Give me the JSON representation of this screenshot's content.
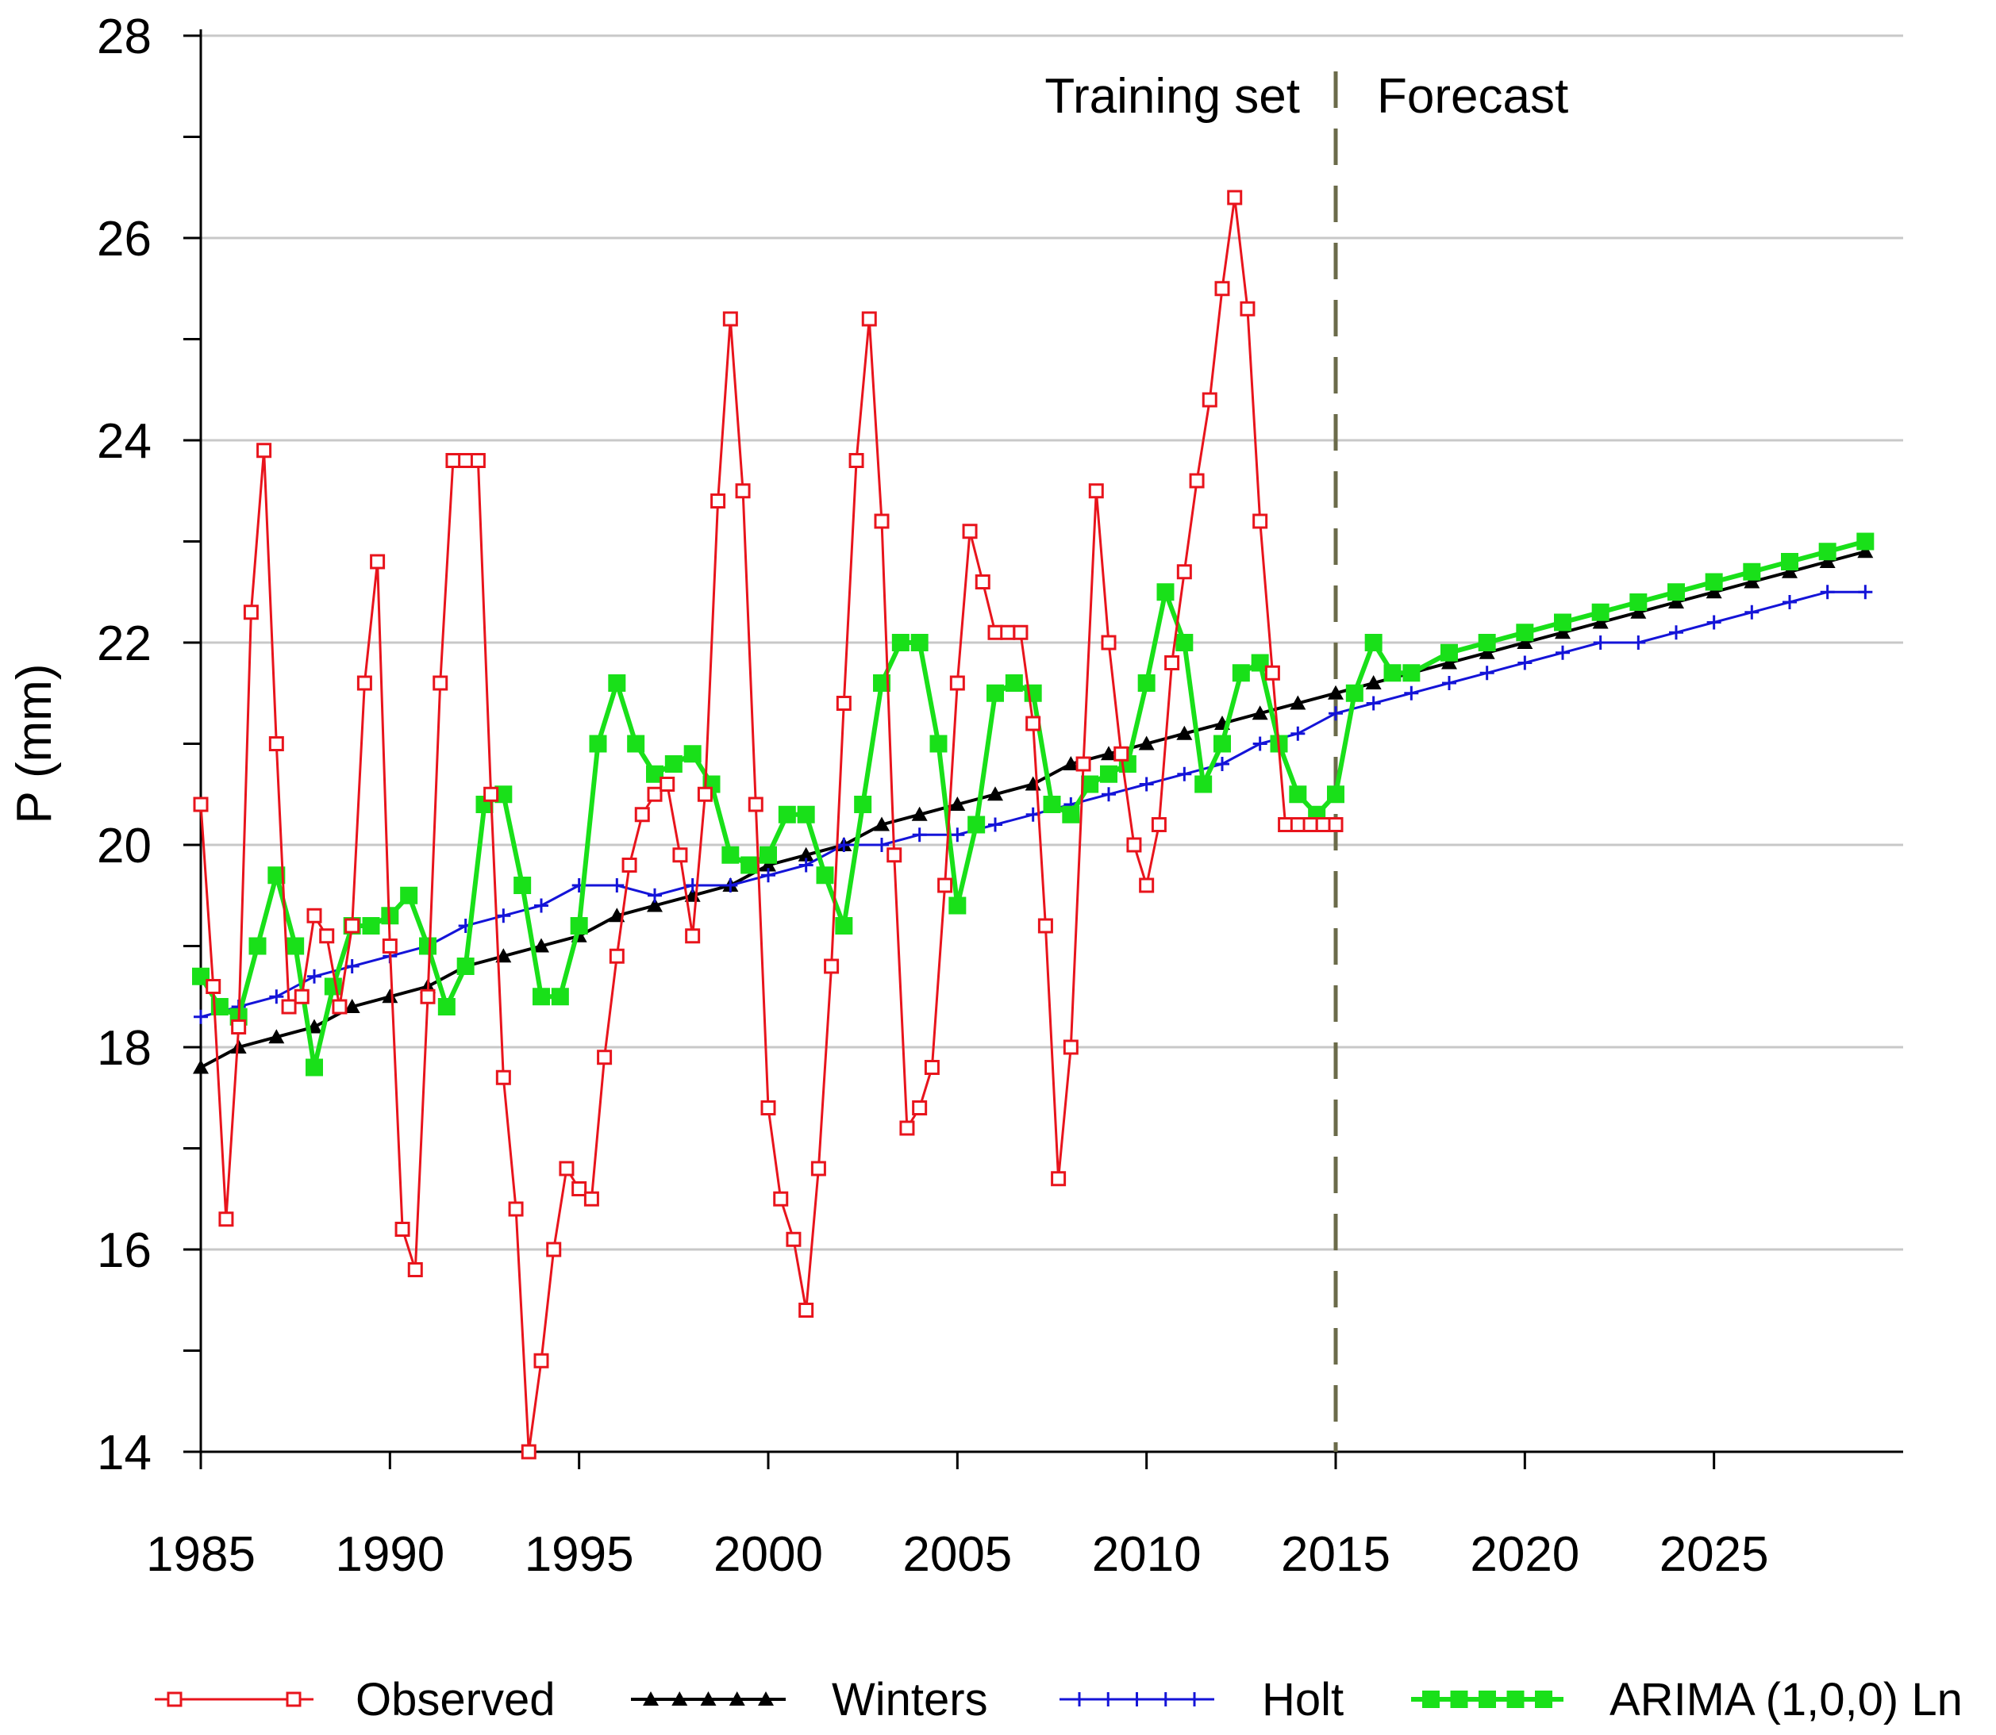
{
  "chart_data": {
    "type": "line",
    "title": "",
    "xlabel": "",
    "ylabel": "P (mm)",
    "xlim": [
      1985,
      2030
    ],
    "ylim": [
      14,
      28
    ],
    "x_ticks": [
      1985,
      1990,
      1995,
      2000,
      2005,
      2010,
      2015,
      2020,
      2025
    ],
    "y_ticks": [
      14,
      16,
      18,
      20,
      22,
      24,
      26,
      28
    ],
    "grid": "horizontal",
    "legend_position": "bottom",
    "annotations": {
      "divider_x": 2015,
      "training_label": "Training set",
      "forecast_label": "Forecast"
    },
    "colors": {
      "observed": "#e8141c",
      "winters": "#000000",
      "holt": "#1414d8",
      "arima": "#19e019",
      "divider": "#6b6b4a",
      "grid": "#c8c8c8"
    },
    "series": [
      {
        "name": "Observed",
        "x": [
          1985.0,
          1985.33,
          1985.67,
          1986.0,
          1986.33,
          1986.67,
          1987.0,
          1987.33,
          1987.67,
          1988.0,
          1988.33,
          1988.67,
          1989.0,
          1989.33,
          1989.67,
          1990.0,
          1990.33,
          1990.67,
          1991.0,
          1991.33,
          1991.67,
          1992.0,
          1992.33,
          1992.67,
          1993.0,
          1993.33,
          1993.67,
          1994.0,
          1994.33,
          1994.67,
          1995.0,
          1995.33,
          1995.67,
          1996.0,
          1996.33,
          1996.67,
          1997.0,
          1997.33,
          1997.67,
          1998.0,
          1998.33,
          1998.67,
          1999.0,
          1999.33,
          1999.67,
          2000.0,
          2000.33,
          2000.67,
          2001.0,
          2001.33,
          2001.67,
          2002.0,
          2002.33,
          2002.67,
          2003.0,
          2003.33,
          2003.67,
          2004.0,
          2004.33,
          2004.67,
          2005.0,
          2005.33,
          2005.67,
          2006.0,
          2006.33,
          2006.67,
          2007.0,
          2007.33,
          2007.67,
          2008.0,
          2008.33,
          2008.67,
          2009.0,
          2009.33,
          2009.67,
          2010.0,
          2010.33,
          2010.67,
          2011.0,
          2011.33,
          2011.67,
          2012.0,
          2012.33,
          2012.67,
          2013.0,
          2013.33,
          2013.67,
          2014.0,
          2014.33,
          2014.67,
          2015.0
        ],
        "values": [
          20.4,
          18.6,
          16.3,
          18.2,
          22.3,
          23.9,
          21.0,
          18.4,
          18.5,
          19.3,
          19.1,
          18.4,
          19.2,
          21.6,
          22.8,
          19.0,
          16.2,
          15.8,
          18.5,
          21.6,
          23.8,
          23.8,
          23.8,
          20.5,
          17.7,
          16.4,
          14.0,
          14.9,
          16.0,
          16.8,
          16.6,
          16.5,
          17.9,
          18.9,
          19.8,
          20.3,
          20.5,
          20.6,
          19.9,
          19.1,
          20.5,
          23.4,
          25.2,
          23.5,
          20.4,
          17.4,
          16.5,
          16.1,
          15.4,
          16.8,
          18.8,
          21.4,
          23.8,
          25.2,
          23.2,
          19.9,
          17.2,
          17.4,
          17.8,
          19.6,
          21.6,
          23.1,
          22.6,
          22.1,
          22.1,
          22.1,
          21.2,
          19.2,
          16.7,
          18.0,
          20.8,
          23.5,
          22.0,
          20.9,
          20.0,
          19.6,
          20.2,
          21.8,
          22.7,
          23.6,
          24.4,
          25.5,
          26.4,
          25.3,
          23.2,
          21.7,
          20.2,
          20.2,
          20.2,
          20.2,
          20.2
        ],
        "marker": "open-square"
      },
      {
        "name": "Winters",
        "x": [
          1985,
          1986,
          1987,
          1988,
          1989,
          1990,
          1991,
          1992,
          1993,
          1994,
          1995,
          1996,
          1997,
          1998,
          1999,
          2000,
          2001,
          2002,
          2003,
          2004,
          2005,
          2006,
          2007,
          2008,
          2009,
          2010,
          2011,
          2012,
          2013,
          2014,
          2015,
          2016,
          2017,
          2018,
          2019,
          2020,
          2021,
          2022,
          2023,
          2024,
          2025,
          2026,
          2027,
          2028,
          2029
        ],
        "values": [
          17.8,
          18.0,
          18.1,
          18.2,
          18.4,
          18.5,
          18.6,
          18.8,
          18.9,
          19.0,
          19.1,
          19.3,
          19.4,
          19.5,
          19.6,
          19.8,
          19.9,
          20.0,
          20.2,
          20.3,
          20.4,
          20.5,
          20.6,
          20.8,
          20.9,
          21.0,
          21.1,
          21.2,
          21.3,
          21.4,
          21.5,
          21.6,
          21.7,
          21.8,
          21.9,
          22.0,
          22.1,
          22.2,
          22.3,
          22.4,
          22.5,
          22.6,
          22.7,
          22.8,
          22.9
        ],
        "marker": "filled-triangle"
      },
      {
        "name": "Holt",
        "x": [
          1985,
          1986,
          1987,
          1988,
          1989,
          1990,
          1991,
          1992,
          1993,
          1994,
          1995,
          1996,
          1997,
          1998,
          1999,
          2000,
          2001,
          2002,
          2003,
          2004,
          2005,
          2006,
          2007,
          2008,
          2009,
          2010,
          2011,
          2012,
          2013,
          2014,
          2015,
          2016,
          2017,
          2018,
          2019,
          2020,
          2021,
          2022,
          2023,
          2024,
          2025,
          2026,
          2027,
          2028,
          2029
        ],
        "values": [
          18.3,
          18.4,
          18.5,
          18.7,
          18.8,
          18.9,
          19.0,
          19.2,
          19.3,
          19.4,
          19.6,
          19.6,
          19.5,
          19.6,
          19.6,
          19.7,
          19.8,
          20.0,
          20.0,
          20.1,
          20.1,
          20.2,
          20.3,
          20.4,
          20.5,
          20.6,
          20.7,
          20.8,
          21.0,
          21.1,
          21.3,
          21.4,
          21.5,
          21.6,
          21.7,
          21.8,
          21.9,
          22.0,
          22.0,
          22.1,
          22.2,
          22.3,
          22.4,
          22.5,
          22.5
        ],
        "marker": "plus"
      },
      {
        "name": "ARIMA (1,0,0) Ln",
        "x": [
          1985.0,
          1985.5,
          1986.0,
          1986.5,
          1987.0,
          1987.5,
          1988.0,
          1988.5,
          1989.0,
          1989.5,
          1990.0,
          1990.5,
          1991.0,
          1991.5,
          1992.0,
          1992.5,
          1993.0,
          1993.5,
          1994.0,
          1994.5,
          1995.0,
          1995.5,
          1996.0,
          1996.5,
          1997.0,
          1997.5,
          1998.0,
          1998.5,
          1999.0,
          1999.5,
          2000.0,
          2000.5,
          2001.0,
          2001.5,
          2002.0,
          2002.5,
          2003.0,
          2003.5,
          2004.0,
          2004.5,
          2005.0,
          2005.5,
          2006.0,
          2006.5,
          2007.0,
          2007.5,
          2008.0,
          2008.5,
          2009.0,
          2009.5,
          2010.0,
          2010.5,
          2011.0,
          2011.5,
          2012.0,
          2012.5,
          2013.0,
          2013.5,
          2014.0,
          2014.5,
          2015.0,
          2015.5,
          2016.0,
          2016.5,
          2017.0,
          2018.0,
          2019.0,
          2020.0,
          2021.0,
          2022.0,
          2023.0,
          2024.0,
          2025.0,
          2026.0,
          2027.0,
          2028.0,
          2029.0
        ],
        "values": [
          18.7,
          18.4,
          18.3,
          19.0,
          19.7,
          19.0,
          17.8,
          18.6,
          19.2,
          19.2,
          19.3,
          19.5,
          19.0,
          18.4,
          18.8,
          20.4,
          20.5,
          19.6,
          18.5,
          18.5,
          19.2,
          21.0,
          21.6,
          21.0,
          20.7,
          20.8,
          20.9,
          20.6,
          19.9,
          19.8,
          19.9,
          20.3,
          20.3,
          19.7,
          19.2,
          20.4,
          21.6,
          22.0,
          22.0,
          21.0,
          19.4,
          20.2,
          21.5,
          21.6,
          21.5,
          20.4,
          20.3,
          20.6,
          20.7,
          20.8,
          21.6,
          22.5,
          22.0,
          20.6,
          21.0,
          21.7,
          21.8,
          21.0,
          20.5,
          20.3,
          20.5,
          21.5,
          22.0,
          21.7,
          21.7,
          21.9,
          22.0,
          22.1,
          22.2,
          22.3,
          22.4,
          22.5,
          22.6,
          22.7,
          22.8,
          22.9,
          23.0
        ],
        "marker": "filled-square"
      }
    ]
  }
}
